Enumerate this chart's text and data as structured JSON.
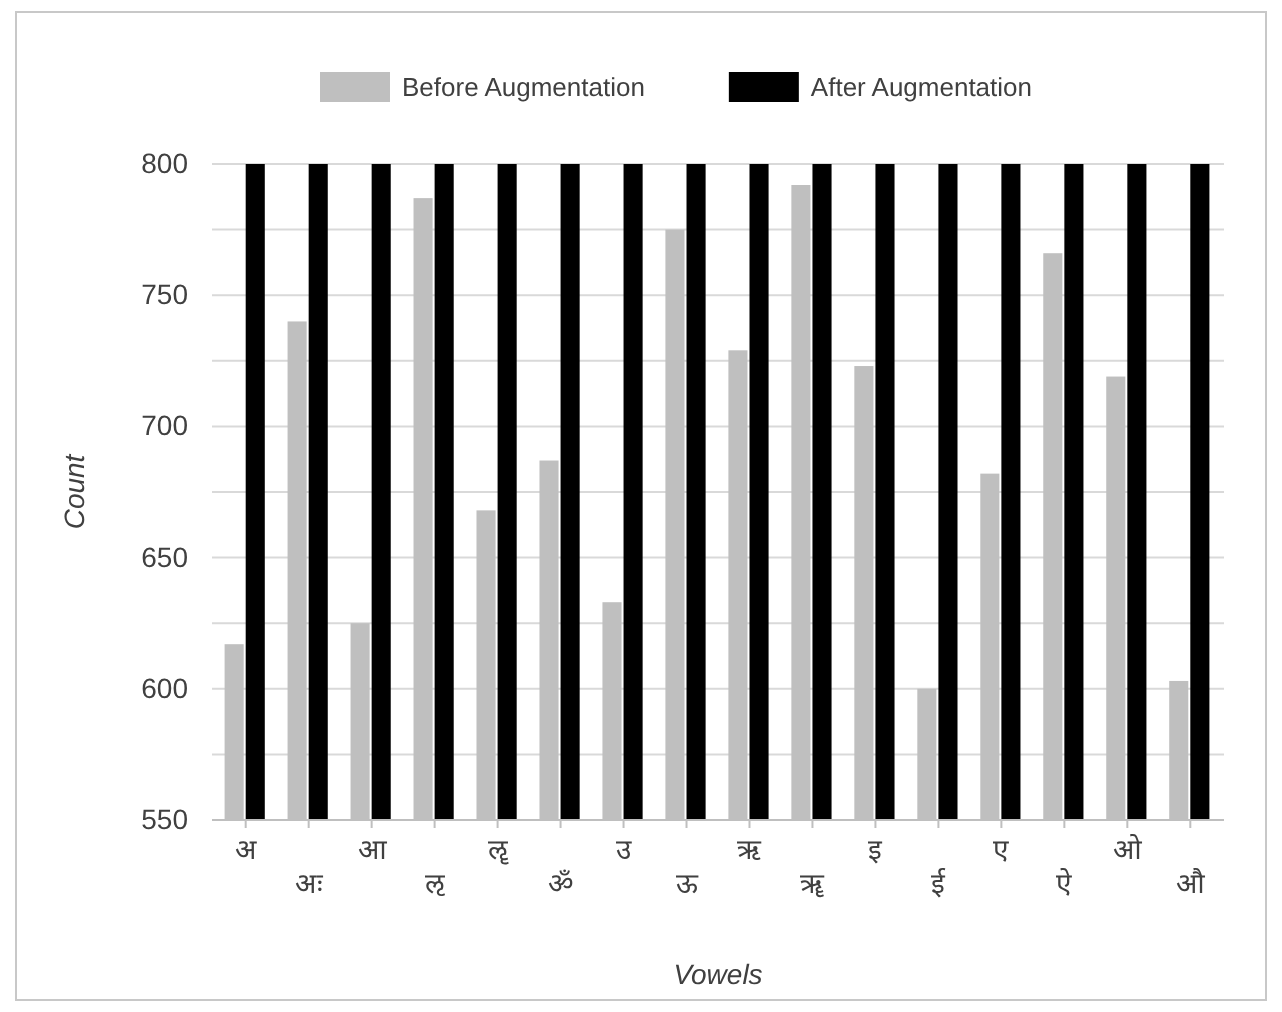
{
  "chart_data": {
    "type": "bar",
    "xlabel": "Vowels",
    "ylabel": "Count",
    "categories": [
      "अ",
      "अः",
      "आ",
      "ऌ",
      "ॡ",
      "ॐ",
      "उ",
      "ऊ",
      "ऋ",
      "ॠ",
      "इ",
      "ई",
      "ए",
      "ऐ",
      "ओ",
      "औ"
    ],
    "series": [
      {
        "name": "Before Augmentation",
        "color": "#bfbfbf",
        "values": [
          617,
          740,
          625,
          787,
          668,
          687,
          633,
          775,
          729,
          792,
          723,
          600,
          682,
          766,
          719,
          603
        ]
      },
      {
        "name": "After Augmentation",
        "color": "#000000",
        "values": [
          800,
          800,
          800,
          800,
          800,
          800,
          800,
          800,
          800,
          800,
          800,
          800,
          800,
          800,
          800,
          800
        ]
      }
    ],
    "ylim": [
      550,
      800
    ],
    "yticks": [
      550,
      {
        "value": 575,
        "label": null
      },
      600,
      {
        "value": 625,
        "label": null
      },
      650,
      {
        "value": 675,
        "label": null
      },
      700,
      {
        "value": 725,
        "label": null
      },
      750,
      {
        "value": 775,
        "label": null
      },
      800
    ],
    "grid": "y",
    "legend": "top"
  }
}
